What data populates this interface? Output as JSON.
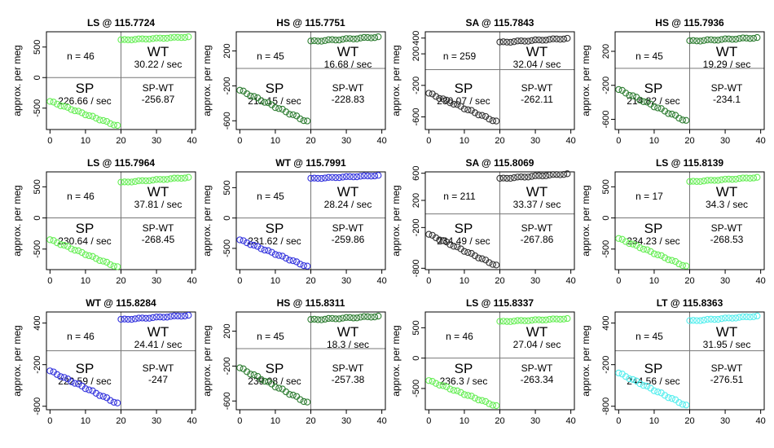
{
  "figure": {
    "x_ticks": [
      0,
      10,
      20,
      30,
      40
    ],
    "xlim": [
      -1,
      41
    ]
  },
  "chart_data": [
    {
      "type": "scatter",
      "title": "LS @ 115.7724",
      "ylabel": "approx. per meg",
      "color": "#66ee55",
      "ylim": [
        -850,
        750
      ],
      "yticks": [
        -500,
        0,
        500
      ],
      "n_label": "n = 46",
      "wt_label": "WT",
      "wt_rate": "30.22 / sec",
      "sp_label": "SP",
      "sp_rate": "226.66 / sec",
      "diff_label": "SP-WT",
      "diff_value": "-256.87",
      "sp_start": -390,
      "sp_end": -790,
      "wt_start": 615,
      "wt_end": 665
    },
    {
      "type": "scatter",
      "title": "HS @ 115.7751",
      "ylabel": "approx. per meg",
      "color": "#2e7d32",
      "ylim": [
        -700,
        420
      ],
      "yticks": [
        -600,
        -200,
        200
      ],
      "n_label": "n = 45",
      "wt_label": "WT",
      "wt_rate": "16.68 / sec",
      "sp_label": "SP",
      "sp_rate": "212.15 / sec",
      "diff_label": "SP-WT",
      "diff_value": "-228.83",
      "sp_start": -250,
      "sp_end": -610,
      "wt_start": 310,
      "wt_end": 360
    },
    {
      "type": "scatter",
      "title": "SA @ 115.7843",
      "ylabel": "approx. per meg",
      "color": "#333333",
      "ylim": [
        -760,
        480
      ],
      "yticks": [
        -600,
        -200,
        200,
        400
      ],
      "n_label": "n = 259",
      "wt_label": "WT",
      "wt_rate": "32.04 / sec",
      "sp_label": "SP",
      "sp_rate": "230.07 / sec",
      "diff_label": "SP-WT",
      "diff_value": "-262.11",
      "sp_start": -300,
      "sp_end": -660,
      "wt_start": 345,
      "wt_end": 395
    },
    {
      "type": "scatter",
      "title": "HS @ 115.7936",
      "ylabel": "approx. per meg",
      "color": "#2e7d32",
      "ylim": [
        -720,
        430
      ],
      "yticks": [
        -600,
        -200,
        200
      ],
      "n_label": "n = 45",
      "wt_label": "WT",
      "wt_rate": "19.29 / sec",
      "sp_label": "SP",
      "sp_rate": "214.82 / sec",
      "diff_label": "SP-WT",
      "diff_value": "-234.1",
      "sp_start": -250,
      "sp_end": -620,
      "wt_start": 320,
      "wt_end": 360
    },
    {
      "type": "scatter",
      "title": "LS @ 115.7964",
      "ylabel": "approx. per meg",
      "color": "#66ee55",
      "ylim": [
        -830,
        740
      ],
      "yticks": [
        -500,
        0,
        500
      ],
      "n_label": "n = 46",
      "wt_label": "WT",
      "wt_rate": "37.81 / sec",
      "sp_label": "SP",
      "sp_rate": "230.64 / sec",
      "diff_label": "SP-WT",
      "diff_value": "-268.45",
      "sp_start": -350,
      "sp_end": -790,
      "wt_start": 570,
      "wt_end": 650
    },
    {
      "type": "scatter",
      "title": "WT @ 115.7991",
      "ylabel": "approx. per meg",
      "color": "#3333dd",
      "ylim": [
        -850,
        760
      ],
      "yticks": [
        -500,
        0,
        500
      ],
      "n_label": "n = 45",
      "wt_label": "WT",
      "wt_rate": "28.24 / sec",
      "sp_label": "SP",
      "sp_rate": "231.62 / sec",
      "diff_label": "SP-WT",
      "diff_value": "-259.86",
      "sp_start": -360,
      "sp_end": -800,
      "wt_start": 650,
      "wt_end": 700
    },
    {
      "type": "scatter",
      "title": "SA @ 115.8069",
      "ylabel": "approx. per meg",
      "color": "#333333",
      "ylim": [
        -820,
        620
      ],
      "yticks": [
        -800,
        -200,
        200,
        600
      ],
      "n_label": "n = 211",
      "wt_label": "WT",
      "wt_rate": "33.37 / sec",
      "sp_label": "SP",
      "sp_rate": "234.49 / sec",
      "diff_label": "SP-WT",
      "diff_value": "-267.86",
      "sp_start": -300,
      "sp_end": -760,
      "wt_start": 520,
      "wt_end": 590
    },
    {
      "type": "scatter",
      "title": "LS @ 115.8139",
      "ylabel": "approx. per meg",
      "color": "#66ee55",
      "ylim": [
        -830,
        740
      ],
      "yticks": [
        -500,
        0,
        500
      ],
      "n_label": "n = 17",
      "wt_label": "WT",
      "wt_rate": "34.3 / sec",
      "sp_label": "SP",
      "sp_rate": "234.23 / sec",
      "diff_label": "SP-WT",
      "diff_value": "-268.53",
      "sp_start": -330,
      "sp_end": -780,
      "wt_start": 580,
      "wt_end": 650
    },
    {
      "type": "scatter",
      "title": "WT @ 115.8284",
      "ylabel": "approx. per meg",
      "color": "#3333dd",
      "ylim": [
        -850,
        560
      ],
      "yticks": [
        -800,
        -200,
        400
      ],
      "n_label": "n = 46",
      "wt_label": "WT",
      "wt_rate": "24.41 / sec",
      "sp_label": "SP",
      "sp_rate": "222.59 / sec",
      "diff_label": "SP-WT",
      "diff_value": "-247",
      "sp_start": -290,
      "sp_end": -760,
      "wt_start": 450,
      "wt_end": 510
    },
    {
      "type": "scatter",
      "title": "HS @ 115.8311",
      "ylabel": "approx. per meg",
      "color": "#2e7d32",
      "ylim": [
        -700,
        420
      ],
      "yticks": [
        -600,
        -200,
        200
      ],
      "n_label": "n = 45",
      "wt_label": "WT",
      "wt_rate": "18.3 / sec",
      "sp_label": "SP",
      "sp_rate": "239.08 / sec",
      "diff_label": "SP-WT",
      "diff_value": "-257.38",
      "sp_start": -220,
      "sp_end": -620,
      "wt_start": 330,
      "wt_end": 370
    },
    {
      "type": "scatter",
      "title": "LS @ 115.8337",
      "ylabel": "approx. per meg",
      "color": "#66ee55",
      "ylim": [
        -850,
        760
      ],
      "yticks": [
        -500,
        0,
        500
      ],
      "n_label": "n = 46",
      "wt_label": "WT",
      "wt_rate": "27.04 / sec",
      "sp_label": "SP",
      "sp_rate": "236.3 / sec",
      "diff_label": "SP-WT",
      "diff_value": "-263.34",
      "sp_start": -370,
      "sp_end": -790,
      "wt_start": 600,
      "wt_end": 650
    },
    {
      "type": "scatter",
      "title": "LT @ 115.8363",
      "ylabel": "approx. per meg",
      "color": "#55eeee",
      "ylim": [
        -850,
        560
      ],
      "yticks": [
        -800,
        -200,
        400
      ],
      "n_label": "n = 45",
      "wt_label": "WT",
      "wt_rate": "31.95 / sec",
      "sp_label": "SP",
      "sp_rate": "244.56 / sec",
      "diff_label": "SP-WT",
      "diff_value": "-276.51",
      "sp_start": -320,
      "sp_end": -790,
      "wt_start": 430,
      "wt_end": 500
    }
  ]
}
